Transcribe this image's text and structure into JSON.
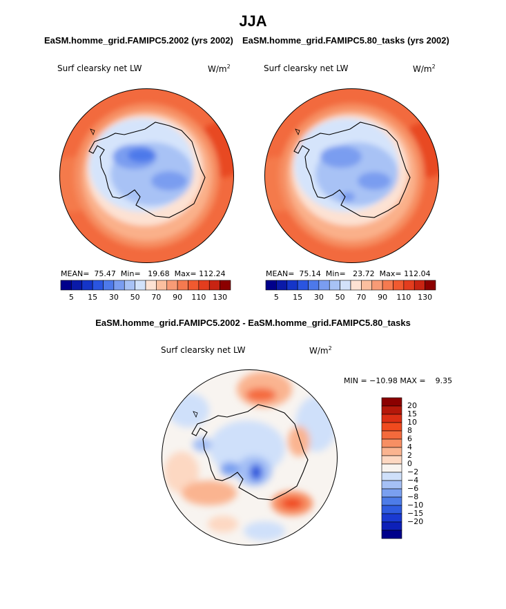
{
  "title": "JJA",
  "panels": [
    {
      "subtitle": "EaSM.homme_grid.FAMIPC5.2002 (yrs 2002)",
      "variable": "Surf clearsky net LW",
      "units": "W/m",
      "units_exp": "2",
      "stats": {
        "mean_label": "MEAN=",
        "mean": "75.47",
        "min_label": "Min=",
        "min": "19.68",
        "max_label": "Max=",
        "max": "112.24"
      }
    },
    {
      "subtitle": "EaSM.homme_grid.FAMIPC5.80_tasks (yrs 2002)",
      "variable": "Surf clearsky net LW",
      "units": "W/m",
      "units_exp": "2",
      "stats": {
        "mean_label": "MEAN=",
        "mean": "75.14",
        "min_label": "Min=",
        "min": "23.72",
        "max_label": "Max=",
        "max": "112.04"
      }
    }
  ],
  "diff_panel": {
    "subtitle": "EaSM.homme_grid.FAMIPC5.2002 - EaSM.homme_grid.FAMIPC5.80_tasks",
    "variable": "Surf clearsky net LW",
    "units": "W/m",
    "units_exp": "2",
    "minmax": "MIN = −10.98 MAX =    9.35"
  },
  "colorbar_main": {
    "colors": [
      "#00008b",
      "#0a1aa8",
      "#1535c8",
      "#2a55e0",
      "#4d79ea",
      "#7a9df0",
      "#a8c2f5",
      "#d2e2fa",
      "#fde2d3",
      "#fbbf9f",
      "#f89b76",
      "#f57a50",
      "#f05a30",
      "#e33d1e",
      "#c82412",
      "#8b0000"
    ],
    "tick_labels": [
      "5",
      "15",
      "30",
      "50",
      "70",
      "90",
      "110",
      "130"
    ]
  },
  "colorbar_diff": {
    "colors": [
      "#8b0000",
      "#b5180a",
      "#dc2f14",
      "#f04a1e",
      "#f46a3c",
      "#f78f63",
      "#fab490",
      "#fdd8c2",
      "#f8f4f0",
      "#cfe0fa",
      "#a5c0f5",
      "#7aa0f0",
      "#4d7ce8",
      "#2f5ce0",
      "#1a3ad2",
      "#0d20b8",
      "#00008b"
    ],
    "tick_labels": [
      "20",
      "15",
      "10",
      "8",
      "6",
      "4",
      "2",
      "0",
      "−2",
      "−4",
      "−6",
      "−8",
      "−10",
      "−15",
      "−20"
    ]
  }
}
